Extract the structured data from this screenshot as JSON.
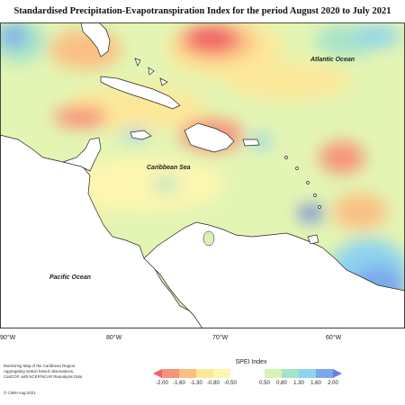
{
  "map": {
    "title": "Standardised Precipitation-Evapotranspiration Index for the period August 2020 to July 2021",
    "labels": {
      "atlantic": "Atlantic Ocean",
      "caribbean": "Caribbean Sea",
      "pacific": "Pacific Ocean"
    },
    "longitudes": [
      "90°W",
      "80°W",
      "70°W",
      "60°W"
    ],
    "credits": [
      "Monitoring Map of the Caribbean Region.",
      "Aggregating station based observations,",
      "CariCOF, with NCEP/NCAR Reanalysis Data"
    ],
    "credit_date": "© CIMH Aug-2021"
  },
  "legend": {
    "title": "SPEI Index",
    "ticks": [
      "-2.00",
      "-1.60",
      "-1.30",
      "-0.80",
      "-0.50",
      "0.50",
      "0.80",
      "1.30",
      "1.60",
      "2.00"
    ],
    "colors": [
      "#f2616a",
      "#f7937a",
      "#fbbf83",
      "#fde89a",
      "#fdf6b0",
      "#d9f3b6",
      "#a6e3c9",
      "#8fd3ee",
      "#7aa8ec",
      "#6b7fe0"
    ]
  }
}
